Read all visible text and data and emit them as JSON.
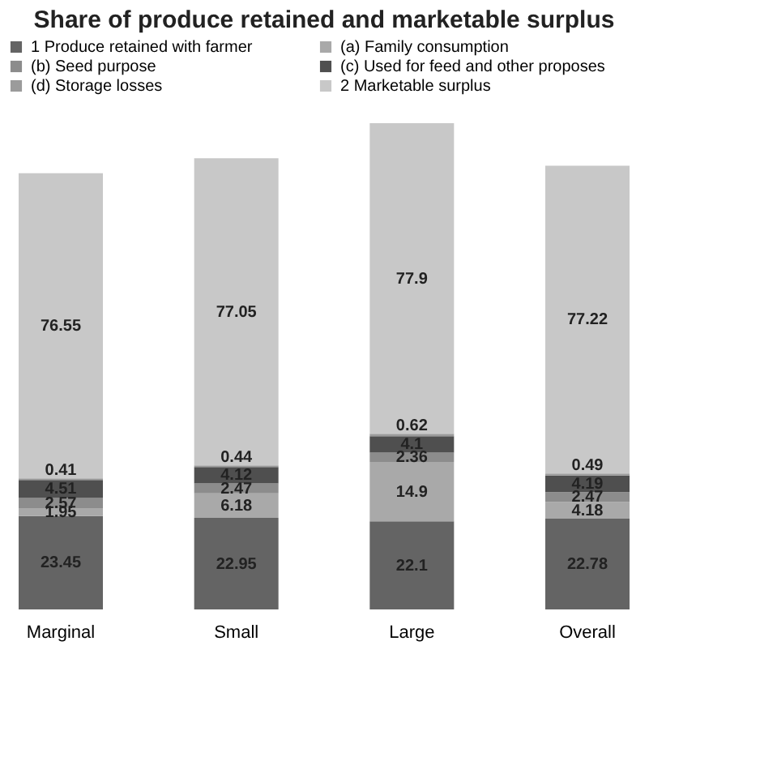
{
  "chart_data": {
    "type": "bar",
    "title": "Share of produce retained and marketable surplus",
    "stacked": true,
    "data_labels": true,
    "legend": "top",
    "categories": [
      "Marginal",
      "Small",
      "Large",
      "Overall"
    ],
    "series": [
      {
        "name": "1 Produce retained with farmer",
        "color": "#646464",
        "values": [
          23.45,
          22.95,
          22.1,
          22.78
        ]
      },
      {
        "name": "(a) Family consumption",
        "color": "#a9a9a9",
        "values": [
          1.95,
          6.18,
          14.9,
          4.18
        ]
      },
      {
        "name": "(b) Seed purpose",
        "color": "#8c8c8c",
        "values": [
          2.57,
          2.47,
          2.36,
          2.47
        ]
      },
      {
        "name": "(c) Used for feed and other proposes",
        "color": "#4f4f4f",
        "values": [
          4.51,
          4.12,
          4.1,
          4.19
        ]
      },
      {
        "name": "(d) Storage losses",
        "color": "#9b9b9b",
        "values": [
          0.41,
          0.44,
          0.62,
          0.49
        ]
      },
      {
        "name": "2 Marketable surplus",
        "color": "#c8c8c8",
        "values": [
          76.55,
          77.05,
          77.9,
          77.22
        ]
      }
    ]
  }
}
